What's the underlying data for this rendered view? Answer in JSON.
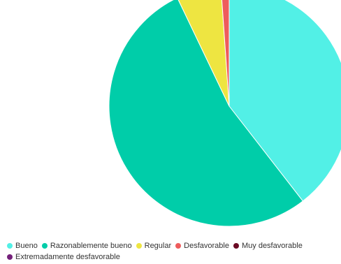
{
  "chart_data": {
    "type": "pie",
    "title": "",
    "categories": [
      "Bueno",
      "Razonablemente bueno",
      "Regular",
      "Desfavorable",
      "Muy desfavorable",
      "Extremadamente desfavorable"
    ],
    "values": [
      39.5,
      53.4,
      6.0,
      1.1,
      0,
      0
    ],
    "colors": [
      "#52f0e6",
      "#00cda9",
      "#eee541",
      "#ee5c5c",
      "#6b0a24",
      "#74217a"
    ],
    "legend": "bottom-left",
    "start_angle_deg": 0,
    "direction": "clockwise"
  }
}
